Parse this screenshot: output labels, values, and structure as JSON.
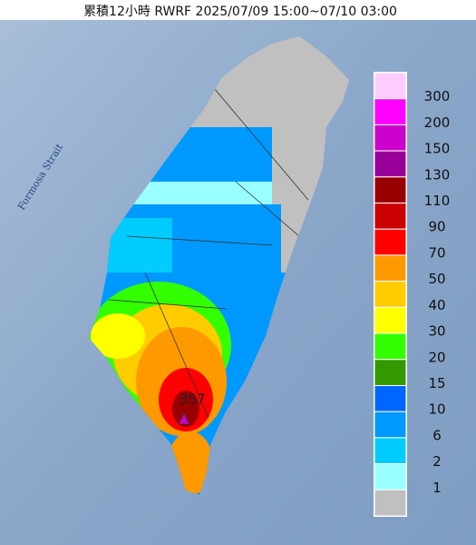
{
  "title": "累積12小時 RWRF 2025/07/09 15:00~07/10 03:00",
  "strait_label": "Formosa Strait",
  "max_annotation": "357",
  "legend": {
    "colors": [
      "#ffccff",
      "#ff00ff",
      "#cc00cc",
      "#990099",
      "#990000",
      "#cc0000",
      "#ff0000",
      "#ff9900",
      "#ffcc00",
      "#ffff00",
      "#33ff00",
      "#339900",
      "#0066ff",
      "#0099ff",
      "#00ccff",
      "#99ffff",
      "#c0c0c0"
    ],
    "labels": [
      300,
      200,
      150,
      130,
      110,
      90,
      70,
      50,
      40,
      30,
      20,
      15,
      10,
      6,
      2,
      1
    ]
  }
}
